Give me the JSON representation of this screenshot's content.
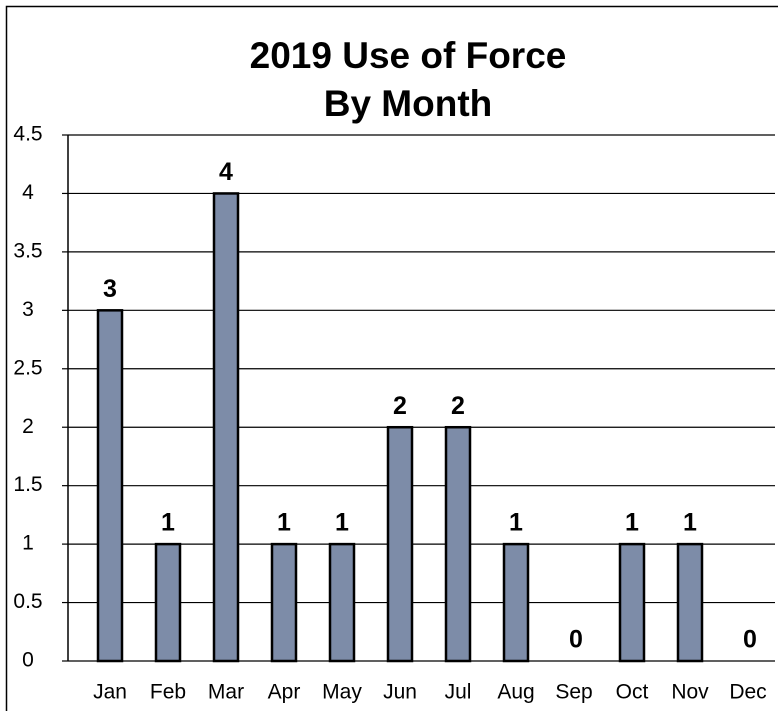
{
  "chart_data": {
    "type": "bar",
    "title": [
      "2019 Use of Force",
      "By Month"
    ],
    "categories": [
      "Jan",
      "Feb",
      "Mar",
      "Apr",
      "May",
      "Jun",
      "Jul",
      "Aug",
      "Sep",
      "Oct",
      "Nov",
      "Dec"
    ],
    "values": [
      3,
      1,
      4,
      1,
      1,
      2,
      2,
      1,
      0,
      1,
      1,
      0
    ],
    "color": "#7d8ca8",
    "ylim": [
      0,
      4.5
    ],
    "yticks": [
      0,
      0.5,
      1,
      1.5,
      2,
      2.5,
      3,
      3.5,
      4,
      4.5
    ],
    "grid": true
  }
}
